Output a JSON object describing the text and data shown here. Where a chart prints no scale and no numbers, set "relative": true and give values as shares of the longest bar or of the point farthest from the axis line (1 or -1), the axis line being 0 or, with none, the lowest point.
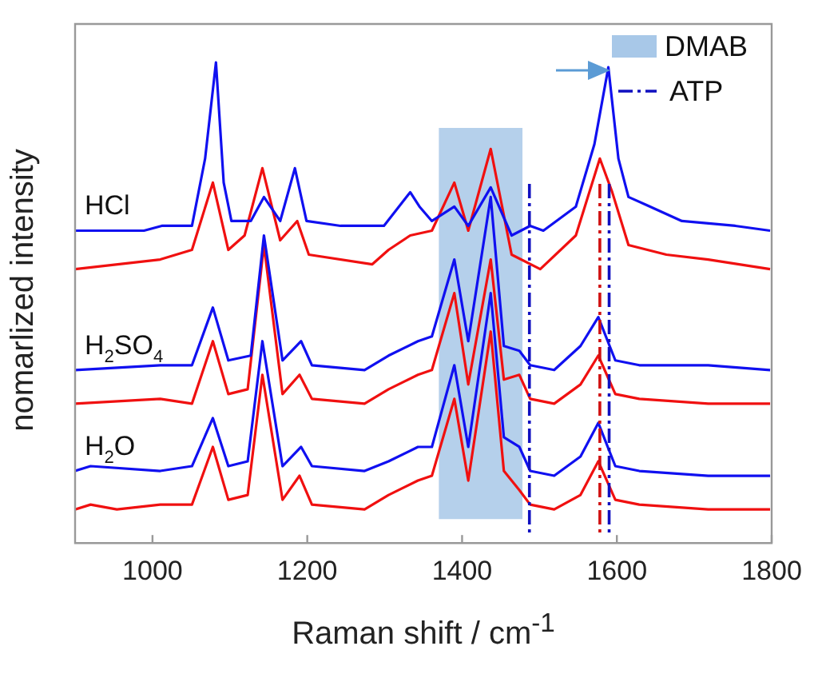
{
  "chart_data": {
    "type": "line",
    "xlabel": "Raman shift / cm$^{-1}$",
    "ylabel": "nomarlized intensity",
    "relative": true,
    "marker": "none",
    "legend": "top right",
    "grid": false,
    "xlim": [
      900,
      1800
    ],
    "xticks": [
      1000,
      1200,
      1400,
      1600,
      1800
    ],
    "series": [
      {
        "name": "HCl",
        "color": "#1010f0",
        "x": [
          900,
          989,
          1012,
          1051,
          1068,
          1082,
          1092,
          1102,
          1127,
          1144,
          1165,
          1184,
          1199,
          1243,
          1299,
          1333,
          1345,
          1361,
          1390,
          1408,
          1437,
          1464,
          1488,
          1505,
          1547,
          1571,
          1589,
          1602,
          1615,
          1643,
          1684,
          1753,
          1798
        ],
        "values": [
          0.65,
          0.65,
          0.66,
          0.66,
          0.8,
          1.0,
          0.75,
          0.67,
          0.67,
          0.72,
          0.67,
          0.78,
          0.67,
          0.66,
          0.66,
          0.73,
          0.7,
          0.67,
          0.7,
          0.66,
          0.74,
          0.64,
          0.66,
          0.65,
          0.7,
          0.83,
          0.99,
          0.8,
          0.72,
          0.7,
          0.67,
          0.66,
          0.65
        ]
      },
      {
        "color": "#f01010",
        "x": [
          900,
          1010,
          1051,
          1078,
          1098,
          1119,
          1142,
          1165,
          1187,
          1202,
          1284,
          1305,
          1333,
          1361,
          1390,
          1408,
          1437,
          1464,
          1501,
          1547,
          1578,
          1594,
          1615,
          1664,
          1718,
          1798
        ],
        "values": [
          0.57,
          0.59,
          0.61,
          0.75,
          0.61,
          0.64,
          0.78,
          0.63,
          0.67,
          0.6,
          0.58,
          0.61,
          0.64,
          0.65,
          0.75,
          0.65,
          0.82,
          0.6,
          0.57,
          0.64,
          0.8,
          0.73,
          0.62,
          0.6,
          0.59,
          0.57
        ]
      },
      {
        "name": "H$_{2}$SO$_{4}$",
        "color": "#1010f0",
        "x": [
          900,
          1010,
          1051,
          1078,
          1098,
          1127,
          1144,
          1168,
          1192,
          1206,
          1274,
          1305,
          1343,
          1361,
          1390,
          1408,
          1437,
          1454,
          1474,
          1488,
          1519,
          1553,
          1576,
          1598,
          1629,
          1718,
          1798
        ],
        "values": [
          0.36,
          0.37,
          0.37,
          0.49,
          0.38,
          0.39,
          0.64,
          0.38,
          0.42,
          0.37,
          0.36,
          0.39,
          0.42,
          0.43,
          0.59,
          0.42,
          0.72,
          0.41,
          0.4,
          0.37,
          0.36,
          0.41,
          0.47,
          0.38,
          0.37,
          0.37,
          0.36
        ]
      },
      {
        "color": "#f01010",
        "x": [
          900,
          1010,
          1051,
          1078,
          1098,
          1123,
          1144,
          1168,
          1190,
          1206,
          1274,
          1305,
          1343,
          1361,
          1390,
          1408,
          1437,
          1454,
          1474,
          1488,
          1519,
          1553,
          1576,
          1598,
          1629,
          1718,
          1798
        ],
        "values": [
          0.29,
          0.3,
          0.29,
          0.42,
          0.31,
          0.32,
          0.62,
          0.31,
          0.35,
          0.3,
          0.29,
          0.32,
          0.35,
          0.36,
          0.52,
          0.33,
          0.59,
          0.34,
          0.35,
          0.3,
          0.29,
          0.33,
          0.39,
          0.31,
          0.3,
          0.29,
          0.29
        ]
      },
      {
        "name": "H$_{2}$O",
        "color": "#1010f0",
        "x": [
          900,
          920,
          1010,
          1051,
          1078,
          1098,
          1123,
          1142,
          1168,
          1192,
          1206,
          1274,
          1305,
          1343,
          1361,
          1390,
          1408,
          1437,
          1454,
          1474,
          1488,
          1519,
          1553,
          1576,
          1598,
          1629,
          1718,
          1798
        ],
        "values": [
          0.15,
          0.16,
          0.15,
          0.16,
          0.26,
          0.16,
          0.17,
          0.42,
          0.16,
          0.2,
          0.16,
          0.15,
          0.17,
          0.2,
          0.2,
          0.37,
          0.2,
          0.52,
          0.22,
          0.2,
          0.15,
          0.14,
          0.18,
          0.25,
          0.16,
          0.15,
          0.14,
          0.14
        ]
      },
      {
        "color": "#f01010",
        "x": [
          900,
          920,
          954,
          1010,
          1051,
          1078,
          1098,
          1123,
          1142,
          1168,
          1190,
          1206,
          1274,
          1305,
          1343,
          1361,
          1390,
          1408,
          1437,
          1454,
          1474,
          1488,
          1519,
          1553,
          1576,
          1598,
          1629,
          1718,
          1798
        ],
        "values": [
          0.07,
          0.08,
          0.07,
          0.08,
          0.08,
          0.2,
          0.09,
          0.1,
          0.35,
          0.09,
          0.14,
          0.08,
          0.07,
          0.1,
          0.13,
          0.14,
          0.3,
          0.13,
          0.44,
          0.15,
          0.11,
          0.08,
          0.07,
          0.1,
          0.17,
          0.09,
          0.08,
          0.07,
          0.07
        ]
      }
    ],
    "bands": [
      {
        "axis": "x",
        "from": 1370,
        "to": 1478,
        "label": "DMAB",
        "color": "#a8c8e8"
      }
    ],
    "ref_lines": [
      {
        "axis": "x",
        "value": 1487,
        "color": "#1010c0",
        "line_style": "dashed"
      },
      {
        "axis": "x",
        "value": 1578,
        "color": "#d01010",
        "line_style": "dashed"
      },
      {
        "axis": "x",
        "value": 1590,
        "color": "#1010c0",
        "line_style": "dashed",
        "label": "ATP"
      }
    ]
  }
}
